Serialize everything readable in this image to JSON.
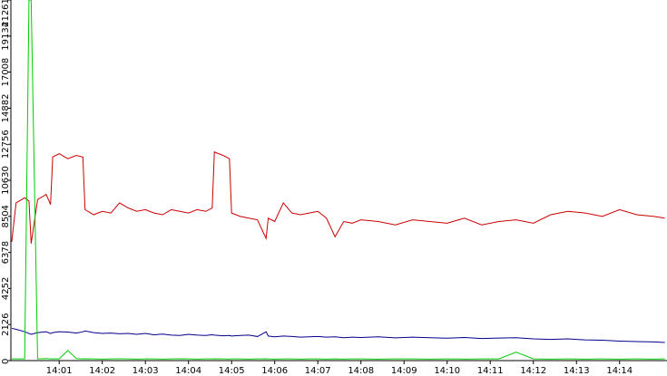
{
  "chart_data": {
    "type": "line",
    "x": [
      839.9,
      840.0,
      840.2,
      840.3,
      840.35,
      840.5,
      840.7,
      840.8,
      840.85,
      841.0,
      841.2,
      841.4,
      841.55,
      841.6,
      841.8,
      842.0,
      842.2,
      842.4,
      842.6,
      842.8,
      843.0,
      843.2,
      843.4,
      843.6,
      843.8,
      844.0,
      844.2,
      844.4,
      844.55,
      844.6,
      844.8,
      844.95,
      845.0,
      845.2,
      845.4,
      845.6,
      845.8,
      845.85,
      846.0,
      846.2,
      846.4,
      846.6,
      846.8,
      847.0,
      847.2,
      847.4,
      847.6,
      847.8,
      848.0,
      848.4,
      848.8,
      849.2,
      849.6,
      850.0,
      850.4,
      850.8,
      851.2,
      851.6,
      852.0,
      852.4,
      852.8,
      853.2,
      853.6,
      854.0,
      854.4,
      854.8,
      855.05
    ],
    "series": [
      {
        "color": "#cc0000",
        "values": [
          7000,
          9300,
          9600,
          9400,
          6900,
          9500,
          9800,
          9200,
          12000,
          12200,
          11900,
          12100,
          12000,
          8900,
          8600,
          8800,
          8700,
          9300,
          9000,
          8800,
          8900,
          8700,
          8600,
          8900,
          8800,
          8700,
          8900,
          8800,
          9000,
          12300,
          12100,
          11900,
          8700,
          8500,
          8400,
          8300,
          7200,
          8400,
          8200,
          9300,
          8700,
          8600,
          8700,
          8800,
          8400,
          7300,
          8200,
          8100,
          8300,
          8200,
          8000,
          8300,
          8200,
          8100,
          8400,
          8000,
          8200,
          8300,
          8100,
          8600,
          8800,
          8700,
          8500,
          8900,
          8600,
          8500,
          8400
        ]
      },
      {
        "color": "#00008b",
        "values": [
          1900,
          1850,
          1700,
          1600,
          1550,
          1650,
          1700,
          1600,
          1650,
          1700,
          1680,
          1620,
          1700,
          1750,
          1650,
          1600,
          1620,
          1580,
          1600,
          1550,
          1600,
          1520,
          1560,
          1500,
          1480,
          1550,
          1500,
          1480,
          1520,
          1500,
          1460,
          1480,
          1450,
          1480,
          1500,
          1420,
          1700,
          1450,
          1400,
          1450,
          1420,
          1380,
          1400,
          1420,
          1380,
          1400,
          1350,
          1380,
          1360,
          1400,
          1340,
          1380,
          1350,
          1320,
          1360,
          1300,
          1330,
          1350,
          1280,
          1250,
          1280,
          1220,
          1200,
          1150,
          1120,
          1100,
          1070
        ]
      },
      {
        "color": "#00cc00",
        "values": [
          100,
          100,
          100,
          21261,
          21261,
          100,
          120,
          100,
          110,
          100,
          600,
          120,
          100,
          110,
          100,
          90,
          100,
          110,
          100,
          90,
          100,
          100,
          90,
          100,
          110,
          100,
          90,
          100,
          100,
          110,
          100,
          90,
          100,
          100,
          90,
          100,
          110,
          100,
          90,
          100,
          100,
          90,
          100,
          100,
          90,
          100,
          90,
          100,
          100,
          90,
          100,
          100,
          90,
          100,
          90,
          100,
          100,
          500,
          100,
          90,
          100,
          90,
          100,
          90,
          100,
          90,
          100
        ]
      }
    ],
    "xlim": [
      839.88,
      855.1
    ],
    "xticks": [
      {
        "value": 841,
        "label": "14:01"
      },
      {
        "value": 842,
        "label": "14:02"
      },
      {
        "value": 843,
        "label": "14:03"
      },
      {
        "value": 844,
        "label": "14:04"
      },
      {
        "value": 845,
        "label": "14:05"
      },
      {
        "value": 846,
        "label": "14:06"
      },
      {
        "value": 847,
        "label": "14:07"
      },
      {
        "value": 848,
        "label": "14:08"
      },
      {
        "value": 849,
        "label": "14:09"
      },
      {
        "value": 850,
        "label": "14:10"
      },
      {
        "value": 851,
        "label": "14:11"
      },
      {
        "value": 852,
        "label": "14:12"
      },
      {
        "value": 853,
        "label": "14:13"
      },
      {
        "value": 854,
        "label": "14:14"
      }
    ],
    "ylim": [
      0,
      21261
    ],
    "yticks": [
      0,
      2126,
      4252,
      6378,
      8504,
      10630,
      12756,
      14882,
      17008,
      19134,
      21261
    ]
  }
}
